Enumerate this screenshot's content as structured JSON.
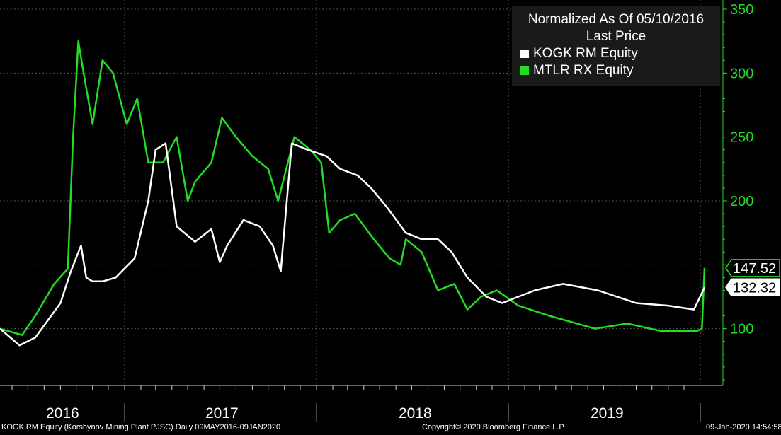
{
  "legend": {
    "title_line1": "Normalized As Of 05/10/2016",
    "title_line2": "Last Price"
  },
  "footer": {
    "left": "KOGK RM Equity (Korshynov Mining Plant PJSC)  Daily 09MAY2016-09JAN2020",
    "center": "Copyright© 2020 Bloomberg Finance L.P.",
    "right": "09-Jan-2020 14:54:58"
  },
  "colors": {
    "kogk": "#ffffff",
    "mtlr": "#22dd22",
    "axis": "#22dd22",
    "bg": "#000000",
    "grid": "#555555"
  },
  "chart_data": {
    "type": "line",
    "ylim": [
      50,
      350
    ],
    "yticks": [
      100,
      150,
      200,
      250,
      300,
      350
    ],
    "ytick_labels": [
      "100",
      "",
      "200",
      "250",
      "300",
      "350"
    ],
    "xlim": [
      "2016-05-09",
      "2020-01-09"
    ],
    "year_labels": [
      "2016",
      "2017",
      "2018",
      "2019"
    ],
    "last_value_labels": [
      {
        "series": "MTLR RX Equity",
        "value": "147.52"
      },
      {
        "series": "KOGK RM Equity",
        "value": "132.32"
      }
    ],
    "series": [
      {
        "name": "KOGK RM Equity",
        "x": [
          "2016-05-09",
          "2016-06-15",
          "2016-07-15",
          "2016-09-01",
          "2016-09-20",
          "2016-10-10",
          "2016-10-20",
          "2016-11-01",
          "2016-11-20",
          "2016-12-15",
          "2017-01-20",
          "2017-02-15",
          "2017-03-01",
          "2017-03-20",
          "2017-04-10",
          "2017-05-15",
          "2017-06-15",
          "2017-07-01",
          "2017-07-15",
          "2017-08-15",
          "2017-09-15",
          "2017-10-10",
          "2017-10-25",
          "2017-11-15",
          "2017-12-15",
          "2018-01-20",
          "2018-02-15",
          "2018-03-20",
          "2018-04-15",
          "2018-05-15",
          "2018-06-20",
          "2018-07-20",
          "2018-08-20",
          "2018-09-15",
          "2018-10-15",
          "2018-11-20",
          "2018-12-20",
          "2019-01-20",
          "2019-02-20",
          "2019-04-15",
          "2019-06-20",
          "2019-09-01",
          "2019-11-01",
          "2019-12-20",
          "2020-01-09"
        ],
        "y": [
          100,
          87,
          93,
          120,
          144,
          165,
          140,
          137,
          137,
          140,
          155,
          200,
          240,
          245,
          180,
          168,
          178,
          152,
          165,
          185,
          180,
          165,
          145,
          245,
          240,
          235,
          225,
          220,
          210,
          195,
          175,
          170,
          170,
          160,
          140,
          125,
          120,
          125,
          130,
          135,
          130,
          120,
          118,
          115,
          132.32
        ]
      },
      {
        "name": "MTLR RX Equity",
        "x": [
          "2016-05-09",
          "2016-06-20",
          "2016-07-15",
          "2016-08-20",
          "2016-09-15",
          "2016-09-25",
          "2016-10-05",
          "2016-10-15",
          "2016-11-01",
          "2016-11-20",
          "2016-12-10",
          "2017-01-05",
          "2017-01-25",
          "2017-02-15",
          "2017-03-15",
          "2017-04-10",
          "2017-05-01",
          "2017-05-15",
          "2017-06-15",
          "2017-07-05",
          "2017-08-01",
          "2017-09-01",
          "2017-10-01",
          "2017-10-20",
          "2017-11-20",
          "2017-12-20",
          "2018-01-10",
          "2018-01-25",
          "2018-02-15",
          "2018-03-15",
          "2018-04-20",
          "2018-05-20",
          "2018-06-10",
          "2018-06-20",
          "2018-07-20",
          "2018-08-20",
          "2018-09-20",
          "2018-10-15",
          "2018-11-10",
          "2018-12-10",
          "2019-01-20",
          "2019-03-20",
          "2019-06-15",
          "2019-08-15",
          "2019-10-20",
          "2019-12-25",
          "2020-01-04",
          "2020-01-09"
        ],
        "y": [
          100,
          95,
          110,
          135,
          147,
          250,
          325,
          300,
          260,
          310,
          300,
          260,
          280,
          230,
          230,
          250,
          200,
          215,
          230,
          265,
          250,
          235,
          225,
          200,
          250,
          240,
          230,
          175,
          185,
          190,
          170,
          155,
          150,
          170,
          160,
          130,
          135,
          115,
          125,
          130,
          118,
          110,
          100,
          104,
          98,
          98,
          100,
          147.52
        ]
      }
    ]
  }
}
